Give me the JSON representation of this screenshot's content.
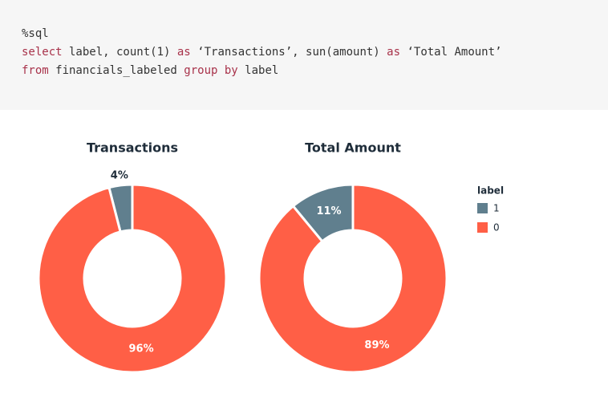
{
  "code": {
    "lines": [
      [
        {
          "text": "%sql",
          "color": "#333333"
        }
      ],
      [
        {
          "text": "select",
          "color": "#a8324a"
        },
        {
          "text": " label, count(1) ",
          "color": "#333333"
        },
        {
          "text": "as",
          "color": "#a8324a"
        },
        {
          "text": " ‘Transactions’, sun(amount) ",
          "color": "#333333"
        },
        {
          "text": "as",
          "color": "#a8324a"
        },
        {
          "text": " ‘Total Amount’",
          "color": "#333333"
        }
      ],
      [
        {
          "text": "from",
          "color": "#a8324a"
        },
        {
          "text": " financials_labeled ",
          "color": "#333333"
        },
        {
          "text": "group by",
          "color": "#a8324a"
        },
        {
          "text": " label",
          "color": "#333333"
        }
      ]
    ]
  },
  "legend": {
    "title": "label"
  },
  "chart_data": [
    {
      "type": "pie",
      "title": "Transactions",
      "categories": [
        "1",
        "0"
      ],
      "values": [
        4,
        96
      ],
      "value_labels": [
        "4%",
        "96%"
      ],
      "colors": [
        "#607f8e",
        "#ff5f46"
      ],
      "donut": true
    },
    {
      "type": "pie",
      "title": "Total Amount",
      "categories": [
        "1",
        "0"
      ],
      "values": [
        11,
        89
      ],
      "value_labels": [
        "11%",
        "89%"
      ],
      "colors": [
        "#607f8e",
        "#ff5f46"
      ],
      "donut": true
    }
  ]
}
